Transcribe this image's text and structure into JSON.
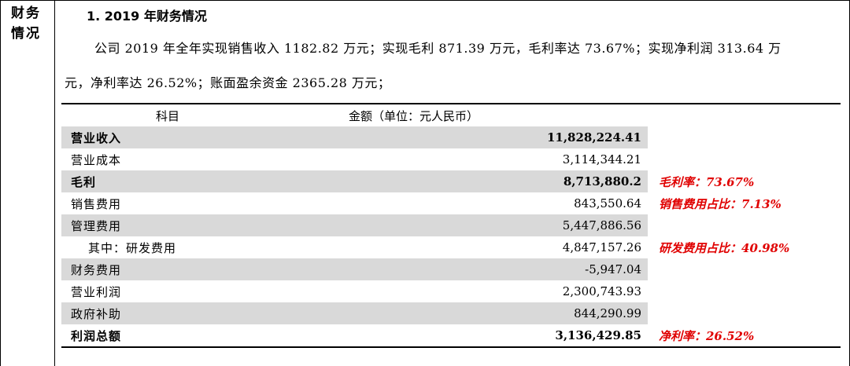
{
  "side_label": "财务\n情况",
  "heading": "1.   2019 年财务情况",
  "paragraph_line1": "公司 2019 年全年实现销售收入 1182.82 万元；实现毛利 871.39 万元，毛利率达 73.67%；实现净利润 313.64 万",
  "paragraph_line2": "元，净利率达 26.52%；账面盈余资金 2365.28 万元；",
  "table": {
    "header_item": "科目",
    "header_amount": "金额（单位：元人民币）",
    "rows": [
      {
        "item": "营业收入",
        "amount": "11,828,224.41",
        "note": ""
      },
      {
        "item": "营业成本",
        "amount": "3,114,344.21",
        "note": ""
      },
      {
        "item": "毛利",
        "amount": "8,713,880.2",
        "note": "毛利率：73.67%"
      },
      {
        "item": "销售费用",
        "amount": "843,550.64",
        "note": "销售费用占比：7.13%"
      },
      {
        "item": "管理费用",
        "amount": "5,447,886.56",
        "note": ""
      },
      {
        "item": "其中：研发费用",
        "amount": "4,847,157.26",
        "note": "研发费用占比：40.98%"
      },
      {
        "item": "财务费用",
        "amount": "-5,947.04",
        "note": ""
      },
      {
        "item": "营业利润",
        "amount": "2,300,743.93",
        "note": ""
      },
      {
        "item": "政府补助",
        "amount": "844,290.99",
        "note": ""
      },
      {
        "item": "利润总额",
        "amount": "3,136,429.85",
        "note": "净利率：26.52%"
      }
    ]
  },
  "colors": {
    "note_red": "#e00000",
    "row_shade": "#d9d9d9"
  }
}
